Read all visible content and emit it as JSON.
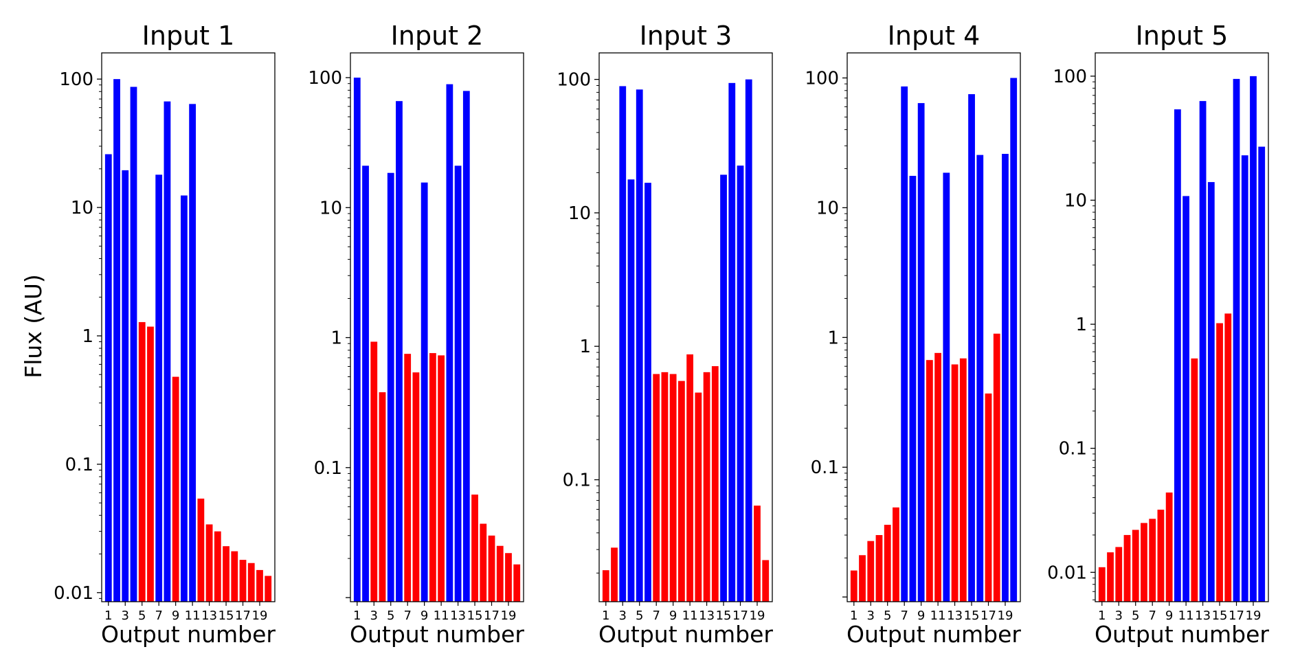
{
  "figure": {
    "ylabel": "Flux (AU)",
    "xlabel": "Output number",
    "positive_color": "#0000ff",
    "negative_color": "#ff0000"
  },
  "chart_data": [
    {
      "type": "bar",
      "title": "Input 1",
      "xlabel": "Output number",
      "ylabel": "Flux (AU)",
      "yscale": "log",
      "ylim": [
        0.0085,
        160
      ],
      "yticks": [
        "0.01",
        "0.1",
        "1",
        "10",
        "100"
      ],
      "xticks": [
        "1",
        "3",
        "5",
        "7",
        "9",
        "11",
        "13",
        "15",
        "17",
        "19"
      ],
      "categories": [
        1,
        2,
        3,
        4,
        5,
        6,
        7,
        8,
        9,
        10,
        11,
        12,
        13,
        14,
        15,
        16,
        17,
        18,
        19,
        20
      ],
      "values": [
        26,
        100,
        19.5,
        87,
        1.28,
        1.18,
        18,
        67,
        0.48,
        12.4,
        64,
        0.054,
        0.034,
        0.03,
        0.023,
        0.021,
        0.018,
        0.017,
        0.015,
        0.0135
      ],
      "colors": [
        "blue",
        "blue",
        "blue",
        "blue",
        "red",
        "red",
        "blue",
        "blue",
        "red",
        "blue",
        "blue",
        "red",
        "red",
        "red",
        "red",
        "red",
        "red",
        "red",
        "red",
        "red"
      ],
      "grid": false
    },
    {
      "type": "bar",
      "title": "Input 2",
      "xlabel": "Output number",
      "yscale": "log",
      "ylim": [
        0.0093,
        155
      ],
      "yticks": [
        "0.1",
        "1",
        "10",
        "100"
      ],
      "xticks": [
        "1",
        "3",
        "5",
        "7",
        "9",
        "11",
        "13",
        "15",
        "17",
        "19"
      ],
      "categories": [
        1,
        2,
        3,
        4,
        5,
        6,
        7,
        8,
        9,
        10,
        11,
        12,
        13,
        14,
        15,
        16,
        17,
        18,
        19,
        20
      ],
      "values": [
        100,
        21,
        0.93,
        0.38,
        18.5,
        66,
        0.75,
        0.54,
        15.6,
        0.76,
        0.73,
        89,
        21,
        79,
        0.062,
        0.037,
        0.03,
        0.025,
        0.022,
        0.018
      ],
      "colors": [
        "blue",
        "blue",
        "red",
        "red",
        "blue",
        "blue",
        "red",
        "red",
        "blue",
        "red",
        "red",
        "blue",
        "blue",
        "blue",
        "red",
        "red",
        "red",
        "red",
        "red",
        "red"
      ],
      "grid": false
    },
    {
      "type": "bar",
      "title": "Input 3",
      "xlabel": "Output number",
      "yscale": "log",
      "ylim": [
        0.0122,
        158
      ],
      "yticks": [
        "0.1",
        "1",
        "10",
        "100"
      ],
      "xticks": [
        "1",
        "3",
        "5",
        "7",
        "9",
        "11",
        "13",
        "15",
        "17",
        "19"
      ],
      "categories": [
        1,
        2,
        3,
        4,
        5,
        6,
        7,
        8,
        9,
        10,
        11,
        12,
        13,
        14,
        15,
        16,
        17,
        18,
        19,
        20
      ],
      "values": [
        0.021,
        0.031,
        89,
        17.8,
        84,
        16.8,
        0.62,
        0.64,
        0.62,
        0.55,
        0.87,
        0.45,
        0.64,
        0.71,
        19.3,
        94,
        22.6,
        100,
        0.064,
        0.025
      ],
      "colors": [
        "red",
        "red",
        "blue",
        "blue",
        "blue",
        "blue",
        "red",
        "red",
        "red",
        "red",
        "red",
        "red",
        "red",
        "red",
        "blue",
        "blue",
        "blue",
        "blue",
        "red",
        "red"
      ],
      "grid": false
    },
    {
      "type": "bar",
      "title": "Input 4",
      "xlabel": "Output number",
      "yscale": "log",
      "ylim": [
        0.0092,
        156
      ],
      "yticks": [
        "0.1",
        "1",
        "10",
        "100"
      ],
      "xticks": [
        "1",
        "3",
        "5",
        "7",
        "9",
        "11",
        "13",
        "15",
        "17",
        "19"
      ],
      "categories": [
        1,
        2,
        3,
        4,
        5,
        6,
        7,
        8,
        9,
        10,
        11,
        12,
        13,
        14,
        15,
        16,
        17,
        18,
        19,
        20
      ],
      "values": [
        0.016,
        0.021,
        0.027,
        0.03,
        0.036,
        0.049,
        86,
        17.6,
        64,
        0.67,
        0.76,
        18.6,
        0.62,
        0.69,
        75,
        25.5,
        0.37,
        1.07,
        26,
        100
      ],
      "colors": [
        "red",
        "red",
        "red",
        "red",
        "red",
        "red",
        "blue",
        "blue",
        "blue",
        "red",
        "red",
        "blue",
        "red",
        "red",
        "blue",
        "blue",
        "red",
        "red",
        "blue",
        "blue"
      ],
      "grid": false
    },
    {
      "type": "bar",
      "title": "Input 5",
      "xlabel": "Output number",
      "yscale": "log",
      "ylim": [
        0.0058,
        154
      ],
      "yticks": [
        "0.01",
        "0.1",
        "1",
        "10",
        "100"
      ],
      "xticks": [
        "1",
        "3",
        "5",
        "7",
        "9",
        "11",
        "13",
        "15",
        "17",
        "19"
      ],
      "categories": [
        1,
        2,
        3,
        4,
        5,
        6,
        7,
        8,
        9,
        10,
        11,
        12,
        13,
        14,
        15,
        16,
        17,
        18,
        19,
        20
      ],
      "values": [
        0.011,
        0.0145,
        0.016,
        0.02,
        0.022,
        0.025,
        0.027,
        0.032,
        0.044,
        54,
        10.8,
        0.53,
        63,
        14,
        1.02,
        1.22,
        95,
        23,
        100,
        27
      ],
      "colors": [
        "red",
        "red",
        "red",
        "red",
        "red",
        "red",
        "red",
        "red",
        "red",
        "blue",
        "blue",
        "red",
        "blue",
        "blue",
        "red",
        "red",
        "blue",
        "blue",
        "blue",
        "blue"
      ],
      "grid": false
    }
  ]
}
